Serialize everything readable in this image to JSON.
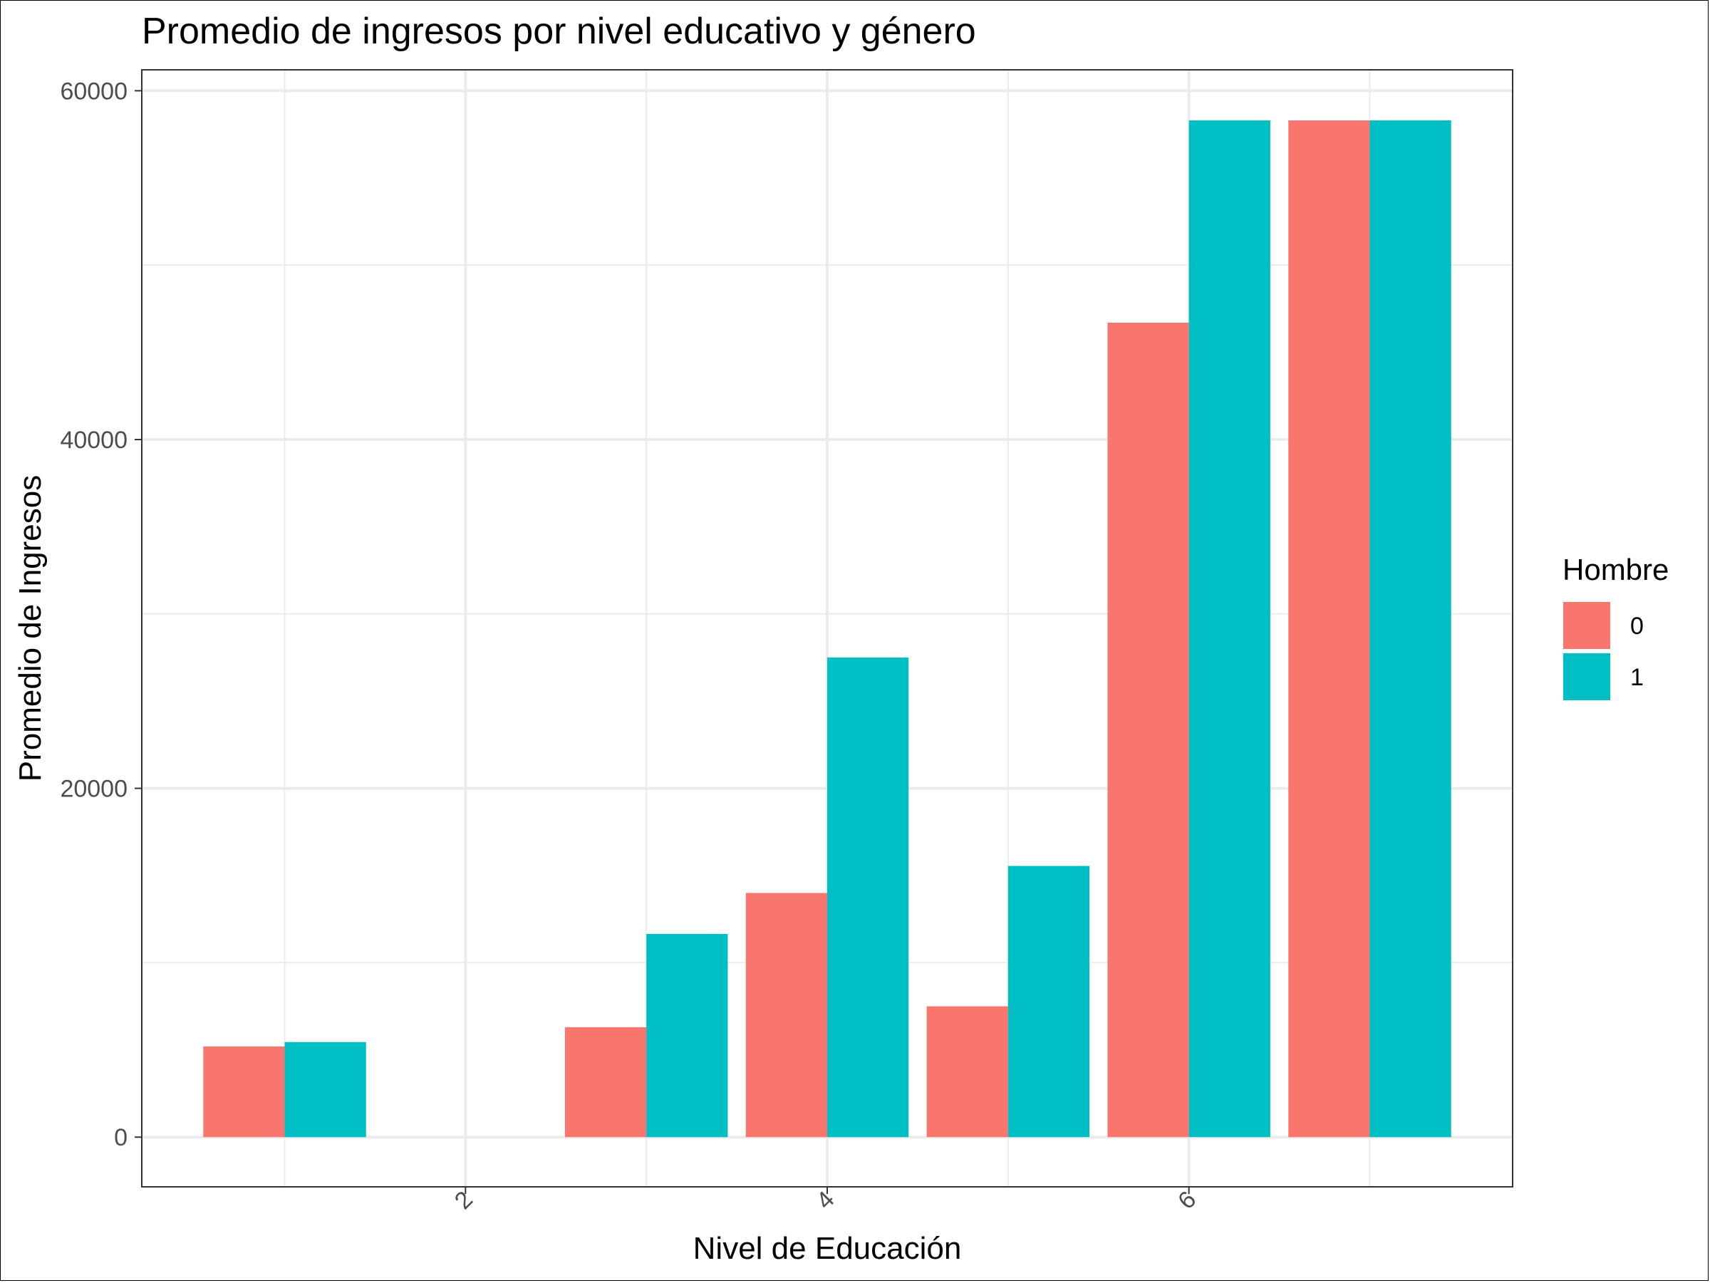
{
  "chart_data": {
    "type": "bar",
    "title": "Promedio de ingresos por nivel educativo y género",
    "xlabel": "Nivel de Educación",
    "ylabel": "Promedio de Ingresos",
    "x": [
      1,
      3,
      4,
      5,
      6,
      7
    ],
    "x_ticks": [
      "2",
      "4",
      "6"
    ],
    "x_tick_values": [
      2,
      4,
      6
    ],
    "xlim": [
      0.21,
      7.79
    ],
    "ylim": [
      -2850,
      61200
    ],
    "y_ticks": [
      "0",
      "20000",
      "40000",
      "60000"
    ],
    "y_tick_values": [
      0,
      20000,
      40000,
      60000
    ],
    "y_minor_values": [
      10000,
      30000,
      50000
    ],
    "legend": {
      "title": "Hombre",
      "position": "right"
    },
    "series": [
      {
        "name": "0",
        "color": "#F8766D",
        "values": [
          5200,
          6300,
          14000,
          7500,
          46700,
          58300
        ]
      },
      {
        "name": "1",
        "color": "#00BFC4",
        "values": [
          5450,
          11650,
          27500,
          15550,
          58300,
          58300
        ]
      }
    ],
    "colors": {
      "grid": "#ebebeb",
      "panel_border": "#333333",
      "tick_text": "#4d4d4d"
    }
  }
}
